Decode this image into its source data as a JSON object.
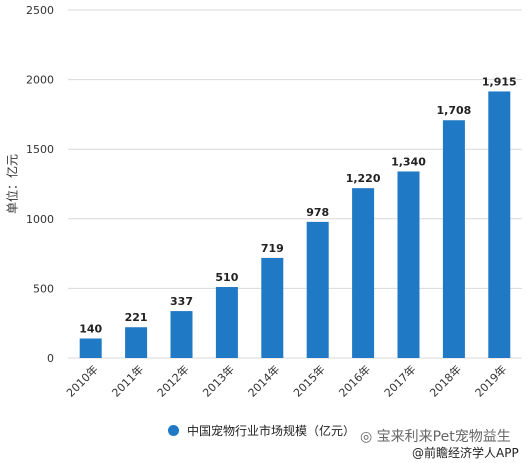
{
  "chart_data": {
    "type": "bar",
    "categories": [
      "2010年",
      "2011年",
      "2012年",
      "2013年",
      "2014年",
      "2015年",
      "2016年",
      "2017年",
      "2018年",
      "2019年"
    ],
    "series": [
      {
        "name": "中国宠物行业市场规模（亿元）",
        "values": [
          140,
          221,
          337,
          510,
          719,
          978,
          1220,
          1340,
          1708,
          1915
        ]
      }
    ],
    "data_labels": [
      "140",
      "221",
      "337",
      "510",
      "719",
      "978",
      "1,220",
      "1,340",
      "1,708",
      "1,915"
    ],
    "ylabel": "单位：亿元",
    "ylim": [
      0,
      2500
    ],
    "yticks": [
      0,
      500,
      1000,
      1500,
      2000,
      2500
    ],
    "grid": true,
    "legend_position": "bottom",
    "bar_color": "#1f79c4"
  },
  "watermarks": {
    "top": "宝来利来Pet宠物益生",
    "bottom": "@前瞻经济学人APP"
  }
}
